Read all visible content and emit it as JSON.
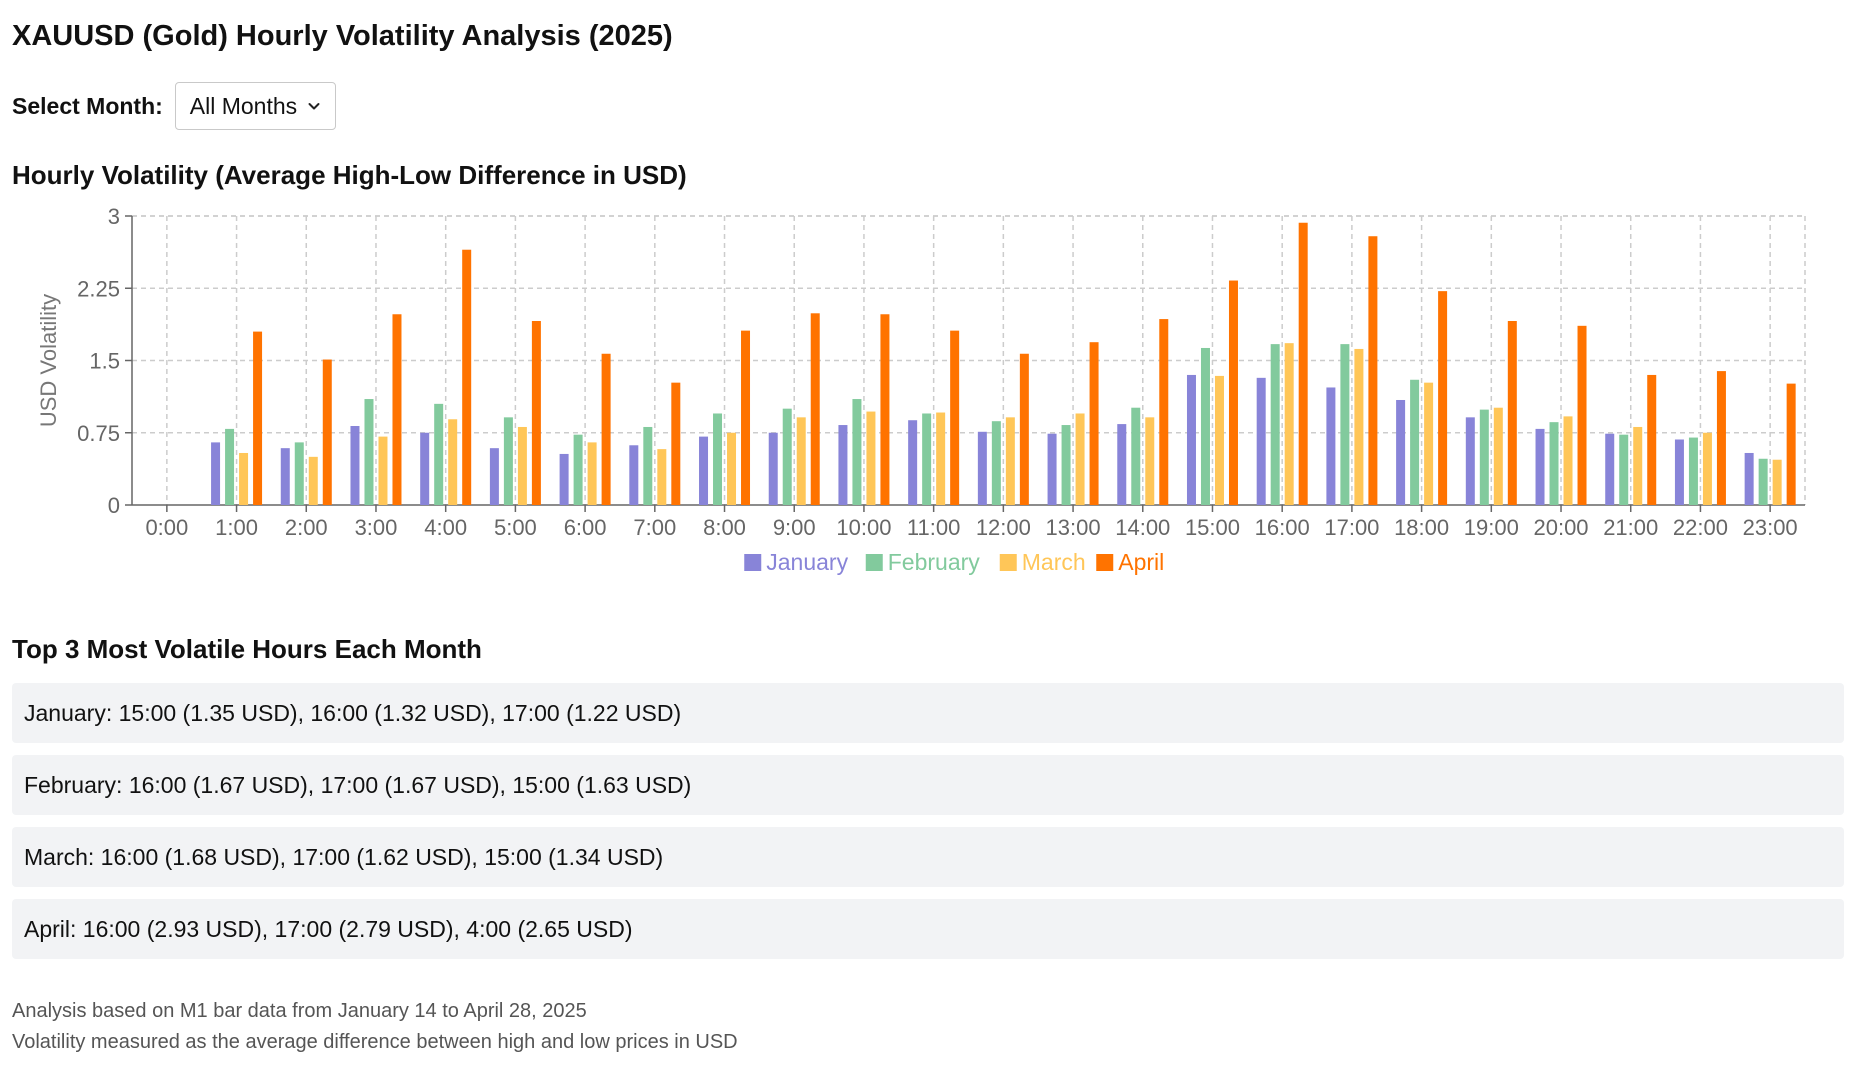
{
  "header": {
    "title": "XAUUSD (Gold) Hourly Volatility Analysis (2025)"
  },
  "selector": {
    "label": "Select Month:",
    "selected": "All Months"
  },
  "chart_section": {
    "title": "Hourly Volatility (Average High-Low Difference in USD)"
  },
  "chart_data": {
    "type": "bar",
    "ylabel": "USD Volatility",
    "xlabel": "",
    "ylim": [
      0,
      3
    ],
    "yticks": [
      "0",
      "0.75",
      "1.5",
      "2.25",
      "3"
    ],
    "grid": true,
    "legend_position": "bottom",
    "categories": [
      "0:00",
      "1:00",
      "2:00",
      "3:00",
      "4:00",
      "5:00",
      "6:00",
      "7:00",
      "8:00",
      "9:00",
      "10:00",
      "11:00",
      "12:00",
      "13:00",
      "14:00",
      "15:00",
      "16:00",
      "17:00",
      "18:00",
      "19:00",
      "20:00",
      "21:00",
      "22:00",
      "23:00"
    ],
    "series": [
      {
        "name": "January",
        "color": "#8884d8",
        "values": [
          0,
          0.65,
          0.59,
          0.82,
          0.75,
          0.59,
          0.53,
          0.62,
          0.71,
          0.75,
          0.83,
          0.88,
          0.76,
          0.74,
          0.84,
          1.35,
          1.32,
          1.22,
          1.09,
          0.91,
          0.79,
          0.74,
          0.68,
          0.54
        ]
      },
      {
        "name": "February",
        "color": "#82ca9d",
        "values": [
          0,
          0.79,
          0.65,
          1.1,
          1.05,
          0.91,
          0.73,
          0.81,
          0.95,
          1.0,
          1.1,
          0.95,
          0.87,
          0.83,
          1.01,
          1.63,
          1.67,
          1.67,
          1.3,
          0.99,
          0.86,
          0.73,
          0.7,
          0.48
        ]
      },
      {
        "name": "March",
        "color": "#ffc658",
        "values": [
          0,
          0.54,
          0.5,
          0.71,
          0.89,
          0.81,
          0.65,
          0.58,
          0.75,
          0.91,
          0.97,
          0.96,
          0.91,
          0.95,
          0.91,
          1.34,
          1.68,
          1.62,
          1.27,
          1.01,
          0.92,
          0.81,
          0.75,
          0.47
        ]
      },
      {
        "name": "April",
        "color": "#ff7300",
        "values": [
          0,
          1.8,
          1.51,
          1.98,
          2.65,
          1.91,
          1.57,
          1.27,
          1.81,
          1.99,
          1.98,
          1.81,
          1.57,
          1.69,
          1.93,
          2.33,
          2.93,
          2.79,
          2.22,
          1.91,
          1.86,
          1.35,
          1.39,
          1.26
        ]
      }
    ]
  },
  "top_section": {
    "title": "Top 3 Most Volatile Hours Each Month",
    "items": [
      "January: 15:00 (1.35 USD), 16:00 (1.32 USD), 17:00 (1.22 USD)",
      "February: 16:00 (1.67 USD), 17:00 (1.67 USD), 15:00 (1.63 USD)",
      "March: 16:00 (1.68 USD), 17:00 (1.62 USD), 15:00 (1.34 USD)",
      "April: 16:00 (2.93 USD), 17:00 (2.79 USD), 4:00 (2.65 USD)"
    ]
  },
  "footer": {
    "line1": "Analysis based on M1 bar data from January 14 to April 28, 2025",
    "line2": "Volatility measured as the average difference between high and low prices in USD"
  },
  "icons": {
    "select_chevron": "chevron-down-icon"
  }
}
